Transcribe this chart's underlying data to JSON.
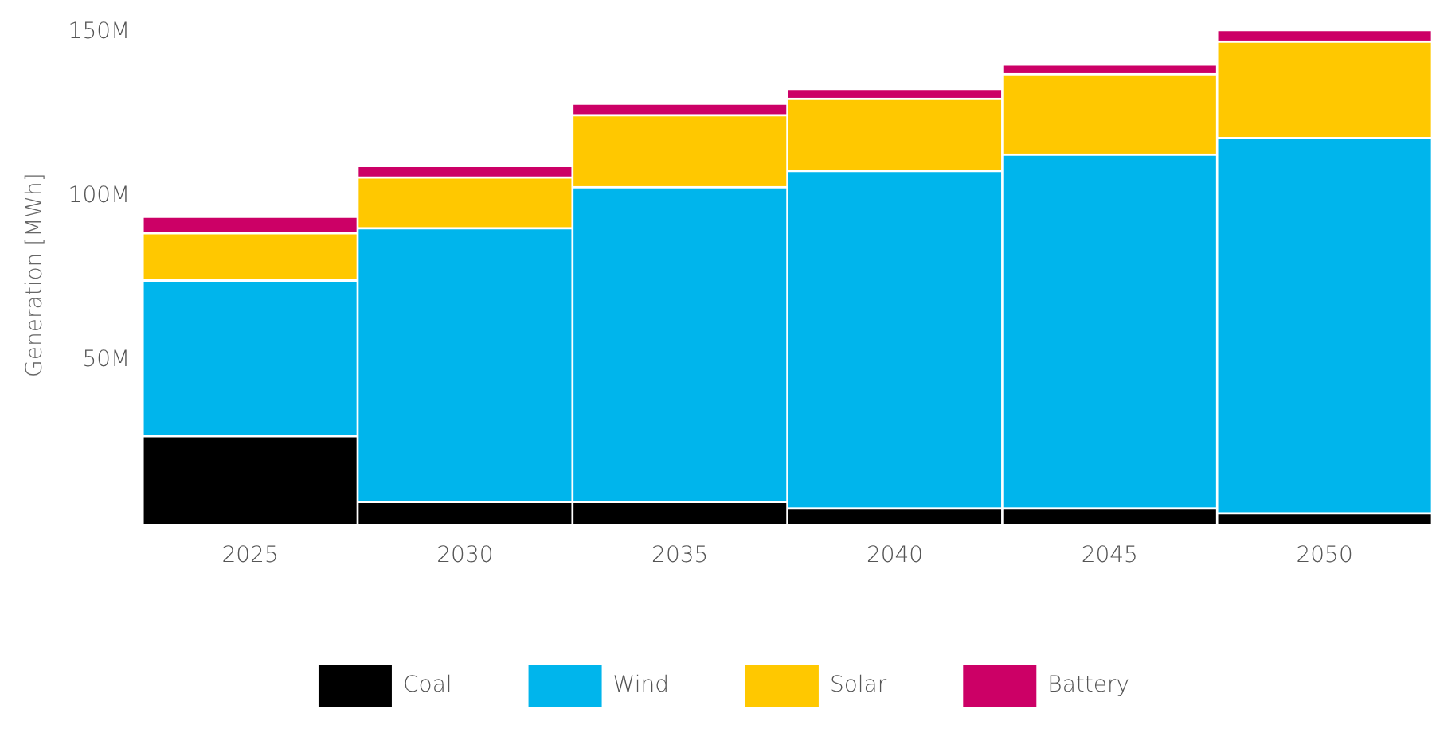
{
  "chart_data": {
    "type": "bar",
    "stacked": true,
    "ylabel": "Generation [MWh]",
    "categories": [
      "2025",
      "2030",
      "2035",
      "2040",
      "2045",
      "2050"
    ],
    "series": [
      {
        "name": "Coal",
        "color": "#000000",
        "values": [
          27000000,
          7000000,
          7000000,
          5000000,
          5000000,
          3500000
        ]
      },
      {
        "name": "Wind",
        "color": "#00b5ec",
        "values": [
          47500000,
          83500000,
          96000000,
          103000000,
          108000000,
          114500000
        ]
      },
      {
        "name": "Solar",
        "color": "#ffc800",
        "values": [
          14500000,
          15500000,
          22000000,
          22000000,
          24500000,
          29500000
        ]
      },
      {
        "name": "Battery",
        "color": "#cc0066",
        "values": [
          5000000,
          3500000,
          3500000,
          3000000,
          3000000,
          3500000
        ]
      }
    ],
    "ylim": [
      0,
      152000000
    ],
    "yticks": [
      {
        "value": 50000000,
        "label": "50M"
      },
      {
        "value": 100000000,
        "label": "100M"
      },
      {
        "value": 150000000,
        "label": "150M"
      }
    ],
    "grid": false,
    "legend": "bottom"
  }
}
